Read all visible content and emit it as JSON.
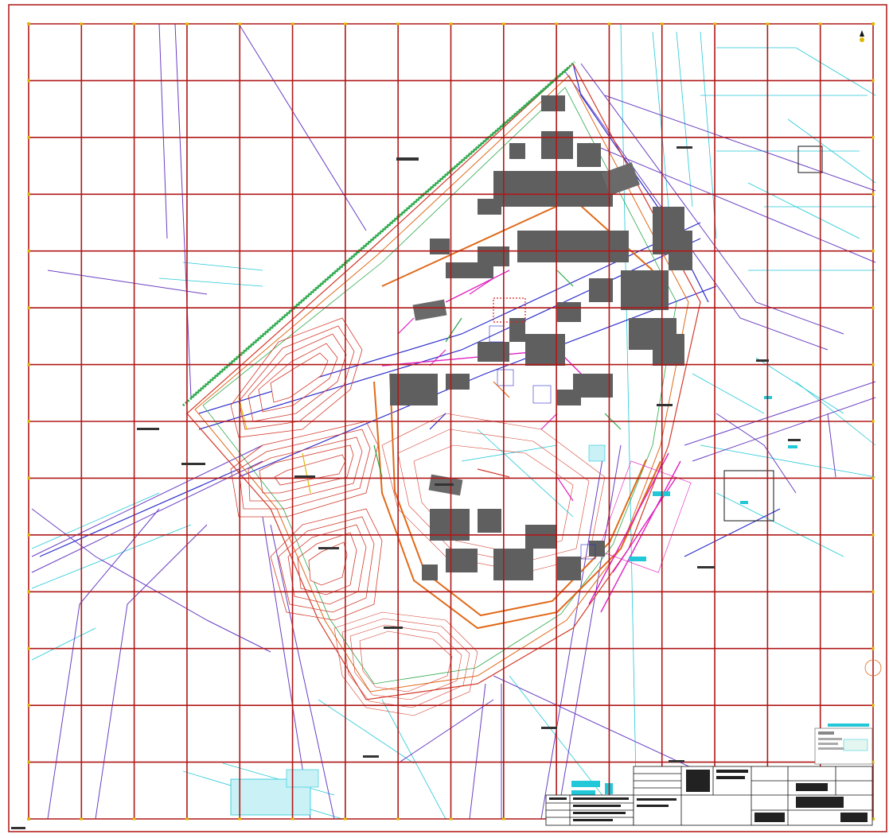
{
  "sheet": {
    "grid": {
      "columns": 17,
      "rows": 15
    },
    "colors": {
      "frame": "#b22222",
      "grid": "#b01818",
      "tick": "#e0b800",
      "building": "#5f5f5f",
      "contour": "#d33b2c",
      "road": "#e06a1a",
      "cyan": "#22c8d8",
      "blue": "#3a3ad0",
      "purple": "#7a3fbf",
      "magenta": "#e020c0",
      "green": "#2aa84a"
    },
    "icons": [
      "north-arrow-icon"
    ]
  }
}
